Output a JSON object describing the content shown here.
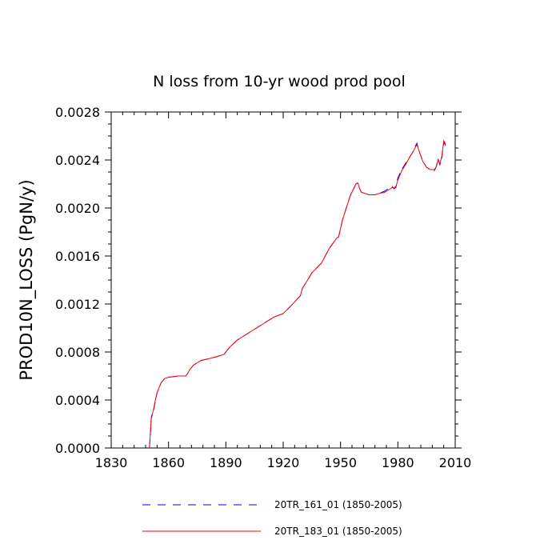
{
  "chart_data": {
    "type": "line",
    "title": "N loss from 10-yr wood prod pool",
    "xlabel": "",
    "ylabel": "PROD10N_LOSS  (PgN/y)",
    "xlim": [
      1830,
      2010
    ],
    "ylim": [
      0,
      0.0028
    ],
    "xticks": [
      1830,
      1860,
      1890,
      1920,
      1950,
      1980,
      2010
    ],
    "xtick_labels": [
      "1830",
      "1860",
      "1890",
      "1920",
      "1950",
      "1980",
      "2010"
    ],
    "yticks": [
      0,
      0.0004,
      0.0008,
      0.0012,
      0.0016,
      0.002,
      0.0024,
      0.0028
    ],
    "ytick_labels": [
      "0.0000",
      "0.0004",
      "0.0008",
      "0.0012",
      "0.0016",
      "0.0020",
      "0.0024",
      "0.0028"
    ],
    "grid": false,
    "legend_position": "bottom",
    "series": [
      {
        "name": "20TR_161_01 (1850-2005)",
        "color": "#0000ff",
        "dash": "dashed",
        "x": [
          1850,
          1851,
          1852,
          1853,
          1854,
          1855,
          1856,
          1858,
          1860,
          1865,
          1869,
          1870,
          1871,
          1873,
          1875,
          1877,
          1880,
          1885,
          1889,
          1890,
          1892,
          1894,
          1896,
          1900,
          1905,
          1910,
          1915,
          1920,
          1925,
          1929,
          1930,
          1932,
          1935,
          1940,
          1944,
          1948,
          1949,
          1951,
          1955,
          1958,
          1959,
          1960,
          1961,
          1963,
          1965,
          1968,
          1970,
          1973,
          1975,
          1977,
          1978,
          1979,
          1980,
          1982,
          1984,
          1986,
          1988,
          1989,
          1990,
          1991,
          1993,
          1995,
          1997,
          1999,
          2000,
          2001,
          2002,
          2003,
          2004,
          2005
        ],
        "y": [
          0.0,
          0.00025,
          0.0003,
          0.00038,
          0.00046,
          0.0005,
          0.00054,
          0.00058,
          0.00059,
          0.0006,
          0.0006,
          0.00062,
          0.00065,
          0.00069,
          0.00071,
          0.00073,
          0.00074,
          0.00076,
          0.00078,
          0.0008,
          0.00084,
          0.00087,
          0.0009,
          0.00094,
          0.00099,
          0.00104,
          0.00109,
          0.00112,
          0.0012,
          0.00127,
          0.00133,
          0.00138,
          0.00146,
          0.00154,
          0.00166,
          0.00175,
          0.00176,
          0.0019,
          0.0021,
          0.0022,
          0.00221,
          0.00216,
          0.00213,
          0.00212,
          0.00211,
          0.00211,
          0.00212,
          0.00214,
          0.00216,
          0.00218,
          0.00216,
          0.00217,
          0.00225,
          0.00232,
          0.00237,
          0.00242,
          0.00247,
          0.00251,
          0.00254,
          0.00248,
          0.00239,
          0.00234,
          0.00232,
          0.00231,
          0.00234,
          0.00241,
          0.00236,
          0.00242,
          0.00255,
          0.00252
        ]
      },
      {
        "name": "20TR_183_01 (1850-2005)",
        "color": "#ff0000",
        "dash": "solid",
        "x": [
          1850,
          1851,
          1852,
          1853,
          1854,
          1855,
          1856,
          1858,
          1860,
          1865,
          1869,
          1870,
          1871,
          1873,
          1875,
          1877,
          1880,
          1885,
          1889,
          1890,
          1892,
          1894,
          1896,
          1900,
          1905,
          1910,
          1915,
          1920,
          1925,
          1929,
          1930,
          1932,
          1935,
          1940,
          1944,
          1948,
          1949,
          1951,
          1955,
          1958,
          1959,
          1960,
          1961,
          1963,
          1965,
          1968,
          1970,
          1973,
          1975,
          1977,
          1978,
          1979,
          1980,
          1982,
          1984,
          1986,
          1988,
          1989,
          1990,
          1991,
          1993,
          1995,
          1997,
          1999,
          2000,
          2001,
          2002,
          2003,
          2004,
          2005
        ],
        "y": [
          0.0,
          0.00026,
          0.00031,
          0.00039,
          0.00046,
          0.0005,
          0.00054,
          0.00058,
          0.00059,
          0.0006,
          0.0006,
          0.00062,
          0.00065,
          0.00069,
          0.00071,
          0.00073,
          0.00074,
          0.00076,
          0.00078,
          0.0008,
          0.00084,
          0.00087,
          0.0009,
          0.00094,
          0.00099,
          0.00104,
          0.00109,
          0.00112,
          0.0012,
          0.00127,
          0.00133,
          0.00138,
          0.00146,
          0.00154,
          0.00166,
          0.00175,
          0.00176,
          0.0019,
          0.0021,
          0.0022,
          0.00221,
          0.00216,
          0.00213,
          0.00212,
          0.00211,
          0.00211,
          0.00212,
          0.00213,
          0.00215,
          0.00217,
          0.00217,
          0.00218,
          0.00223,
          0.00231,
          0.00236,
          0.00242,
          0.00247,
          0.0025,
          0.00253,
          0.00248,
          0.00239,
          0.00234,
          0.00232,
          0.00232,
          0.00234,
          0.0024,
          0.00237,
          0.00243,
          0.00256,
          0.00253
        ]
      }
    ]
  }
}
